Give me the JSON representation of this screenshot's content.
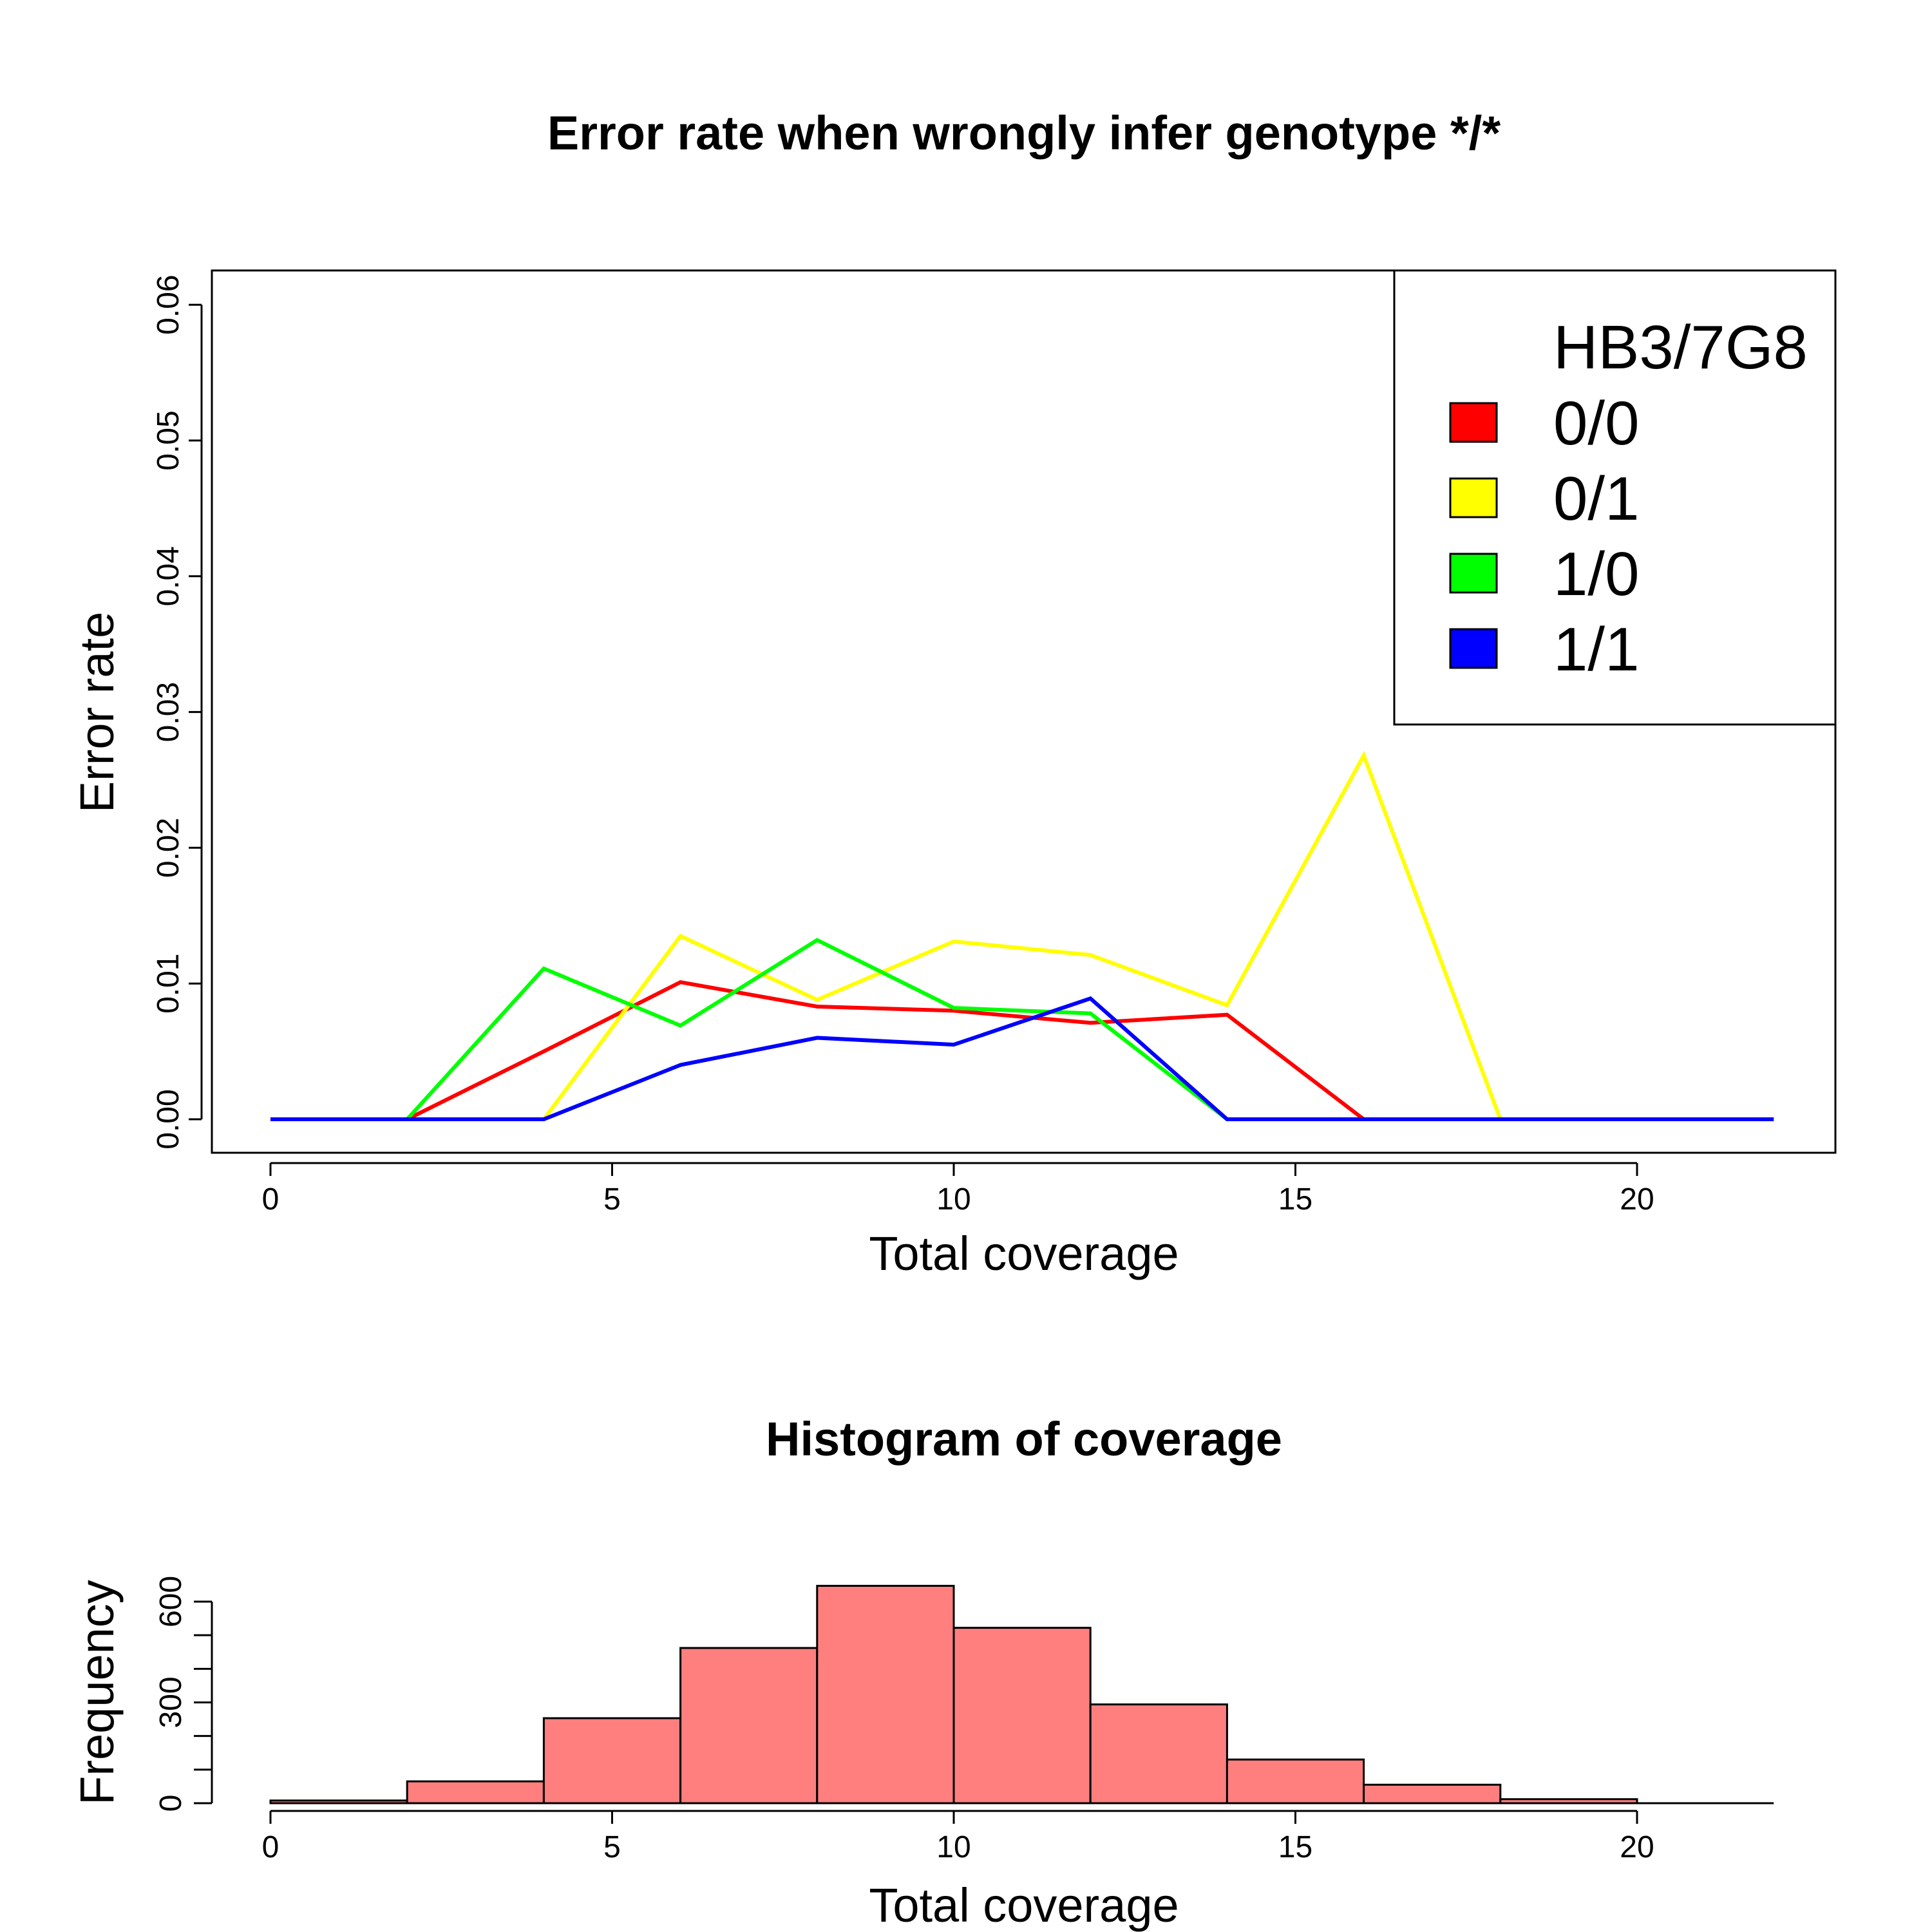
{
  "chart_data": [
    {
      "type": "line",
      "title": "Error rate when wrongly infer genotype */*",
      "xlabel": "Total coverage",
      "ylabel": "Error rate",
      "x": [
        0,
        2,
        4,
        6,
        8,
        10,
        12,
        14,
        16,
        18,
        20,
        22
      ],
      "xlim": [
        0,
        22
      ],
      "ylim": [
        0,
        0.06
      ],
      "xticks": [
        "0",
        "5",
        "10",
        "15",
        "20"
      ],
      "yticks": [
        "0.00",
        "0.01",
        "0.02",
        "0.03",
        "0.04",
        "0.05",
        "0.06"
      ],
      "legend": {
        "title": "HB3/7G8",
        "placement": "top-right"
      },
      "series": [
        {
          "name": "0/0",
          "color": "#ff0000",
          "values": [
            0,
            0,
            0.005,
            0.0101,
            0.0083,
            0.008,
            0.0071,
            0.0077,
            0,
            0,
            0,
            0
          ]
        },
        {
          "name": "0/1",
          "color": "#ffff00",
          "values": [
            0,
            0,
            0,
            0.0135,
            0.0088,
            0.0131,
            0.0121,
            0.0084,
            0.0268,
            0,
            0,
            0
          ]
        },
        {
          "name": "1/0",
          "color": "#00ff00",
          "values": [
            0,
            0,
            0.0111,
            0.0069,
            0.0132,
            0.0082,
            0.0078,
            0,
            0,
            0,
            0,
            0
          ]
        },
        {
          "name": "1/1",
          "color": "#0000ff",
          "values": [
            0,
            0,
            0,
            0.004,
            0.006,
            0.0055,
            0.0089,
            0,
            0,
            0,
            0,
            0
          ]
        }
      ]
    },
    {
      "type": "bar",
      "title": "Histogram of coverage",
      "xlabel": "Total coverage",
      "ylabel": "Frequency",
      "bin_edges": [
        0,
        2,
        4,
        6,
        8,
        10,
        12,
        14,
        16,
        18,
        20
      ],
      "values": [
        8,
        65,
        253,
        462,
        647,
        522,
        294,
        130,
        55,
        12
      ],
      "xlim": [
        0,
        22
      ],
      "ylim": [
        0,
        600
      ],
      "xticks": [
        "0",
        "5",
        "10",
        "15",
        "20"
      ],
      "yticks": [
        "0",
        "300",
        "600"
      ],
      "bar_color": "#ff7f7f"
    }
  ]
}
